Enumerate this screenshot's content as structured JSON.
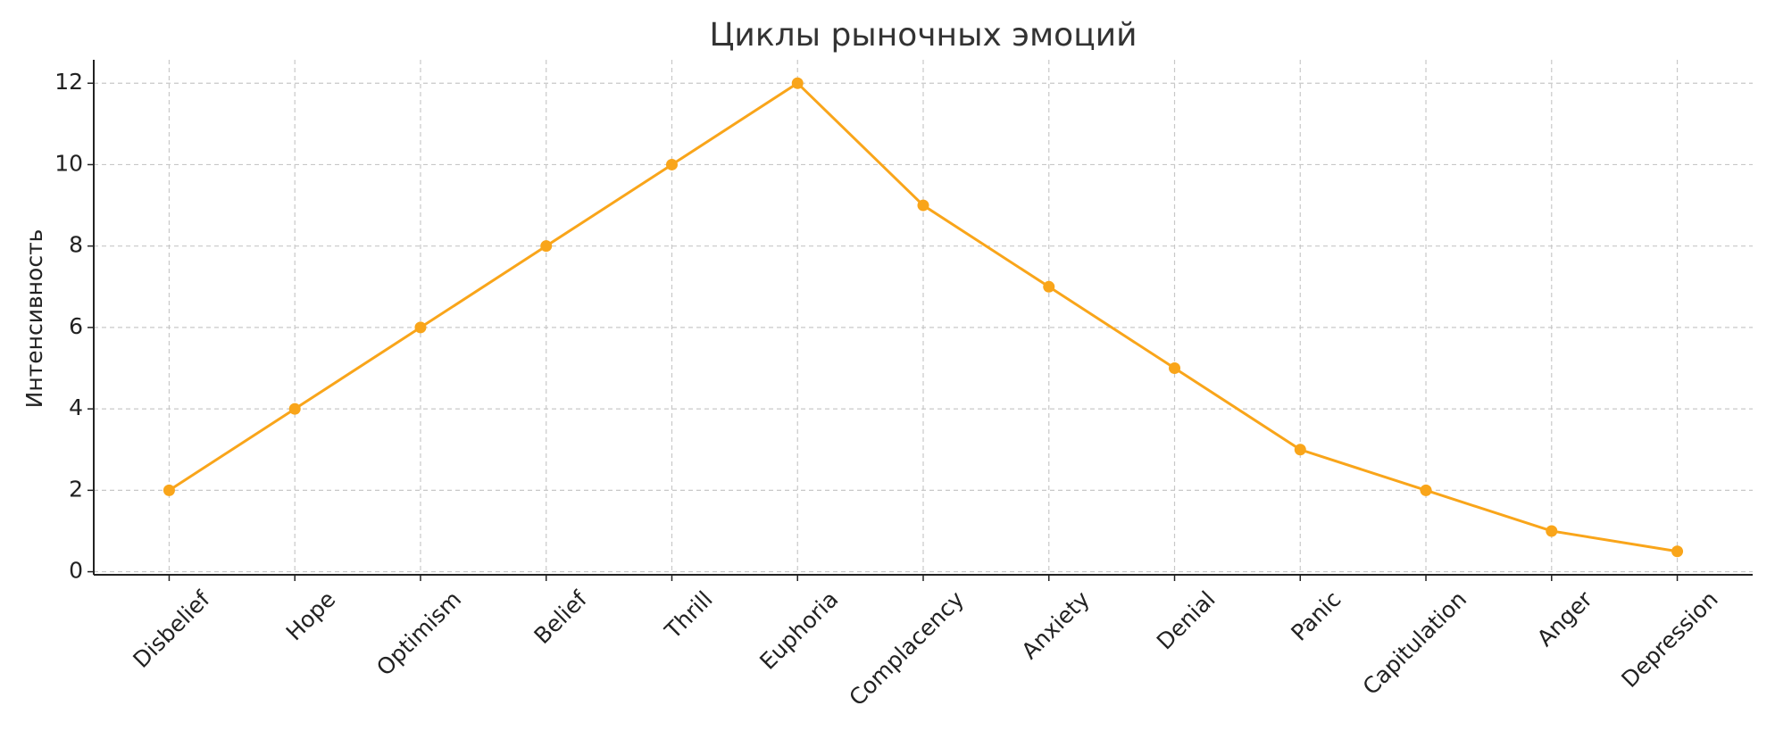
{
  "chart_data": {
    "type": "line",
    "title": "Циклы рыночных эмоций",
    "y_label": "Интенсивность",
    "categories": [
      "Disbelief",
      "Hope",
      "Optimism",
      "Belief",
      "Thrill",
      "Euphoria",
      "Complacency",
      "Anxiety",
      "Denial",
      "Panic",
      "Capitulation",
      "Anger",
      "Depression"
    ],
    "values": [
      2,
      4,
      6,
      8,
      10,
      12,
      9,
      7,
      5,
      3,
      2,
      1,
      0.5
    ],
    "color": "#f9a51a",
    "marker": true,
    "ylim": [
      -0.075,
      12.575
    ],
    "yticks": [
      0,
      2,
      4,
      6,
      8,
      10,
      12
    ],
    "grid": true
  }
}
